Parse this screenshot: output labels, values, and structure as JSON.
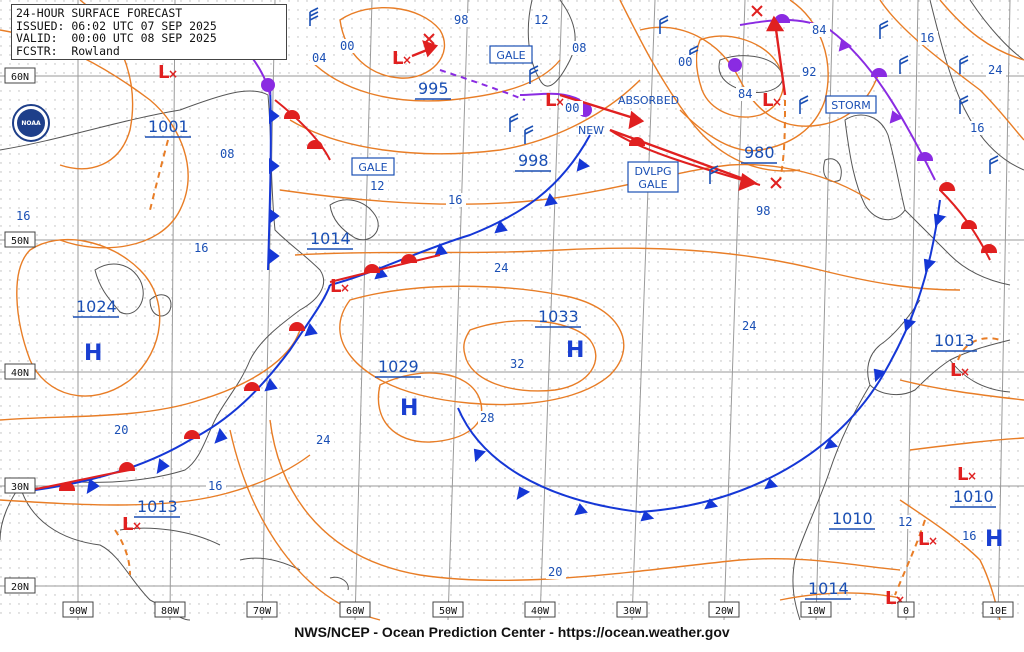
{
  "header": {
    "line1": "24-HOUR SURFACE FORECAST",
    "line2": "ISSUED: 06:02 UTC 07 SEP 2025",
    "line3": "VALID:  00:00 UTC 08 SEP 2025",
    "line4": "FCSTR:  Rowland"
  },
  "logo_text": "NOAA",
  "footer": "NWS/NCEP - Ocean Prediction Center - https://ocean.weather.gov",
  "lat_labels": [
    "60N",
    "50N",
    "40N",
    "30N",
    "20N"
  ],
  "lon_labels": [
    "90W",
    "80W",
    "70W",
    "60W",
    "50W",
    "40W",
    "30W",
    "20W",
    "10W",
    "0",
    "10E"
  ],
  "pressure_centers": [
    {
      "type": "H",
      "value": "1024"
    },
    {
      "type": "H",
      "value": "1029"
    },
    {
      "type": "H",
      "value": "1033"
    },
    {
      "type": "H",
      "value": "1013"
    },
    {
      "type": "L",
      "value": "1001"
    },
    {
      "type": "L",
      "value": "995"
    },
    {
      "type": "L",
      "value": "998"
    },
    {
      "type": "L",
      "value": "980"
    },
    {
      "type": "L",
      "value": "1014"
    },
    {
      "type": "L",
      "value": "1013"
    },
    {
      "type": "L",
      "value": "1010"
    },
    {
      "type": "L",
      "value": "1010"
    },
    {
      "type": "L",
      "value": "1014"
    }
  ],
  "isobar_labels": [
    "04",
    "00",
    "98",
    "12",
    "08",
    "00",
    "84",
    "92",
    "16",
    "24",
    "84",
    "98",
    "08",
    "16",
    "16",
    "12",
    "16",
    "24",
    "24",
    "32",
    "28",
    "16",
    "24",
    "20",
    "20",
    "16",
    "12",
    "16",
    "00"
  ],
  "warning_labels": [
    "GALE",
    "GALE",
    "DVLPG GALE",
    "STORM"
  ],
  "text_labels": [
    "ABSORBED",
    "NEW"
  ],
  "colors": {
    "isobar": "#e87d26",
    "cold_front": "#1537d6",
    "warm_front": "#e02020",
    "occluded": "#8a2be2",
    "label": "#1a4fb4",
    "grid": "#9a9a9a",
    "coast": "#555555"
  }
}
